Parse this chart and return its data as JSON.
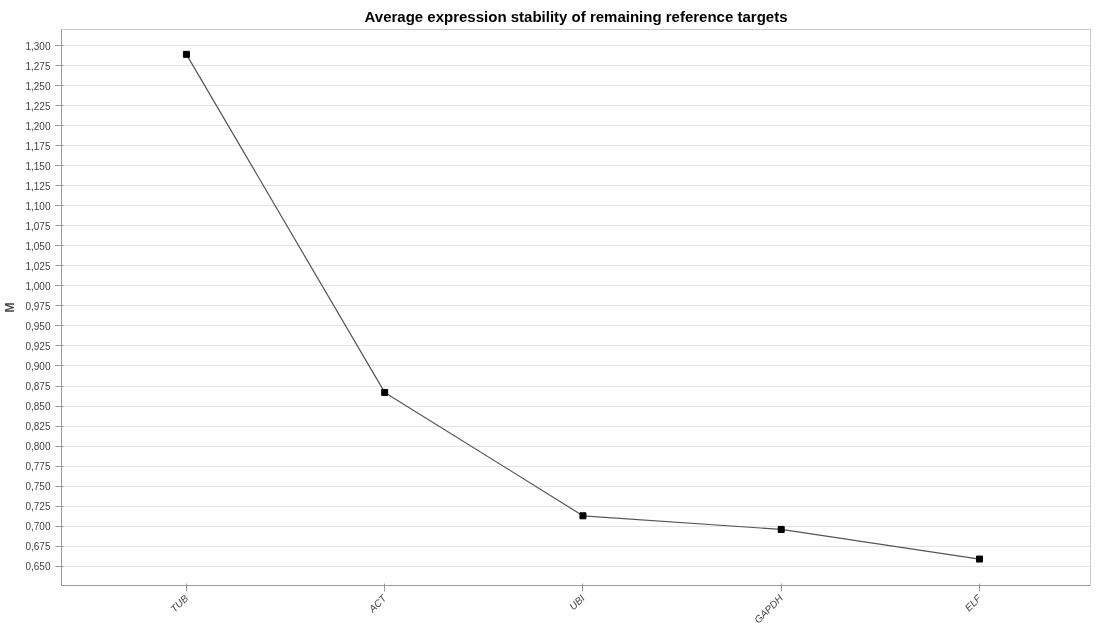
{
  "chart_data": {
    "type": "line",
    "title": "Average expression stability of remaining reference targets",
    "ylabel": "M",
    "categories": [
      "TUB",
      "ACT",
      "UBI",
      "GAPDH",
      "ELF"
    ],
    "series": [
      {
        "color": "#555555",
        "values": [
          1.289,
          0.867,
          0.713,
          0.696,
          0.659
        ]
      }
    ],
    "ylim": [
      0.626,
      1.32
    ],
    "yticks": [
      {
        "value": 0.65,
        "label": "0,650"
      },
      {
        "value": 0.675,
        "label": "0,675"
      },
      {
        "value": 0.7,
        "label": "0,700"
      },
      {
        "value": 0.725,
        "label": "0,725"
      },
      {
        "value": 0.75,
        "label": "0,750"
      },
      {
        "value": 0.775,
        "label": "0,775"
      },
      {
        "value": 0.8,
        "label": "0,800"
      },
      {
        "value": 0.825,
        "label": "0,825"
      },
      {
        "value": 0.85,
        "label": "0,850"
      },
      {
        "value": 0.875,
        "label": "0,875"
      },
      {
        "value": 0.9,
        "label": "0,900"
      },
      {
        "value": 0.925,
        "label": "0,925"
      },
      {
        "value": 0.95,
        "label": "0,950"
      },
      {
        "value": 0.975,
        "label": "0,975"
      },
      {
        "value": 1.0,
        "label": "1,000"
      },
      {
        "value": 1.025,
        "label": "1,025"
      },
      {
        "value": 1.05,
        "label": "1,050"
      },
      {
        "value": 1.075,
        "label": "1,075"
      },
      {
        "value": 1.1,
        "label": "1,100"
      },
      {
        "value": 1.125,
        "label": "1,125"
      },
      {
        "value": 1.15,
        "label": "1,150"
      },
      {
        "value": 1.175,
        "label": "1,175"
      },
      {
        "value": 1.2,
        "label": "1,200"
      },
      {
        "value": 1.225,
        "label": "1,225"
      },
      {
        "value": 1.25,
        "label": "1,250"
      },
      {
        "value": 1.275,
        "label": "1,275"
      },
      {
        "value": 1.3,
        "label": "1,300"
      }
    ],
    "grid": "y",
    "marker": "square",
    "line_style": "solid"
  }
}
